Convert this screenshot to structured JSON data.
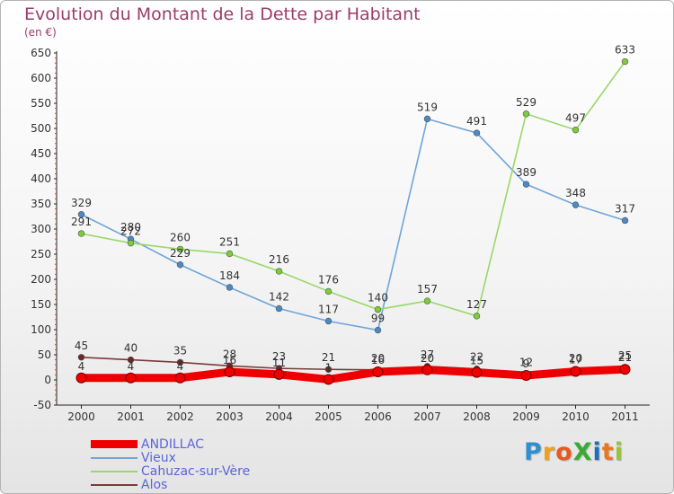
{
  "header": {
    "title": "Evolution du Montant de la Dette par Habitant",
    "unit": "(en €)"
  },
  "logo": {
    "text": "ProXiti",
    "letters": [
      {
        "ch": "P",
        "color": "#2f8fd0"
      },
      {
        "ch": "r",
        "color": "#f0a020"
      },
      {
        "ch": "o",
        "color": "#e65a20"
      },
      {
        "ch": "X",
        "color": "#3aaa35"
      },
      {
        "ch": "i",
        "color": "#1f6fb5"
      },
      {
        "ch": "t",
        "color": "#e87820"
      },
      {
        "ch": "i",
        "color": "#9ac33a"
      }
    ]
  },
  "chart_data": {
    "type": "line",
    "title": "Evolution du Montant de la Dette par Habitant",
    "subtitle": "(en €)",
    "xlabel": "",
    "ylabel": "",
    "x": [
      "2000",
      "2001",
      "2002",
      "2003",
      "2004",
      "2005",
      "2006",
      "2007",
      "2008",
      "2009",
      "2010",
      "2011"
    ],
    "yticks": [
      -50,
      0,
      50,
      100,
      150,
      200,
      250,
      300,
      350,
      400,
      450,
      500,
      550,
      600,
      650
    ],
    "ylim": [
      -50,
      650
    ],
    "grid": false,
    "legend_position": "bottom-left",
    "series": [
      {
        "name": "ANDILLAC",
        "color": "#ee0000",
        "thick": true,
        "values": [
          4,
          4,
          4,
          16,
          11,
          1,
          16,
          20,
          15,
          9,
          17,
          21
        ],
        "labels": [
          "4",
          "4",
          "4",
          "16",
          "11",
          "1",
          "16",
          "20",
          "15",
          "9",
          "17",
          "21"
        ]
      },
      {
        "name": "Vieux",
        "color": "#6fa5d8",
        "marker": "#4a8ac8",
        "values": [
          329,
          280,
          229,
          184,
          142,
          117,
          99,
          519,
          491,
          389,
          348,
          317
        ],
        "labels": [
          "329",
          "280",
          "229",
          "184",
          "142",
          "117",
          "99",
          "519",
          "491",
          "389",
          "348",
          "317"
        ]
      },
      {
        "name": "Cahuzac-sur-Vère",
        "color": "#98d86a",
        "marker": "#7ccc3c",
        "values": [
          291,
          272,
          260,
          251,
          216,
          176,
          140,
          157,
          127,
          529,
          497,
          633
        ],
        "labels": [
          "291",
          "272",
          "260",
          "251",
          "216",
          "176",
          "140",
          "157",
          "127",
          "529",
          "497",
          "633"
        ]
      },
      {
        "name": "Alos",
        "color": "#7a3a3a",
        "marker": "#6a2828",
        "values": [
          45,
          40,
          35,
          28,
          23,
          21,
          20,
          27,
          22,
          12,
          20,
          25
        ],
        "labels": [
          "45",
          "40",
          "35",
          "28",
          "23",
          "21",
          "20",
          "27",
          "22",
          "12",
          "20",
          "25"
        ]
      }
    ]
  }
}
